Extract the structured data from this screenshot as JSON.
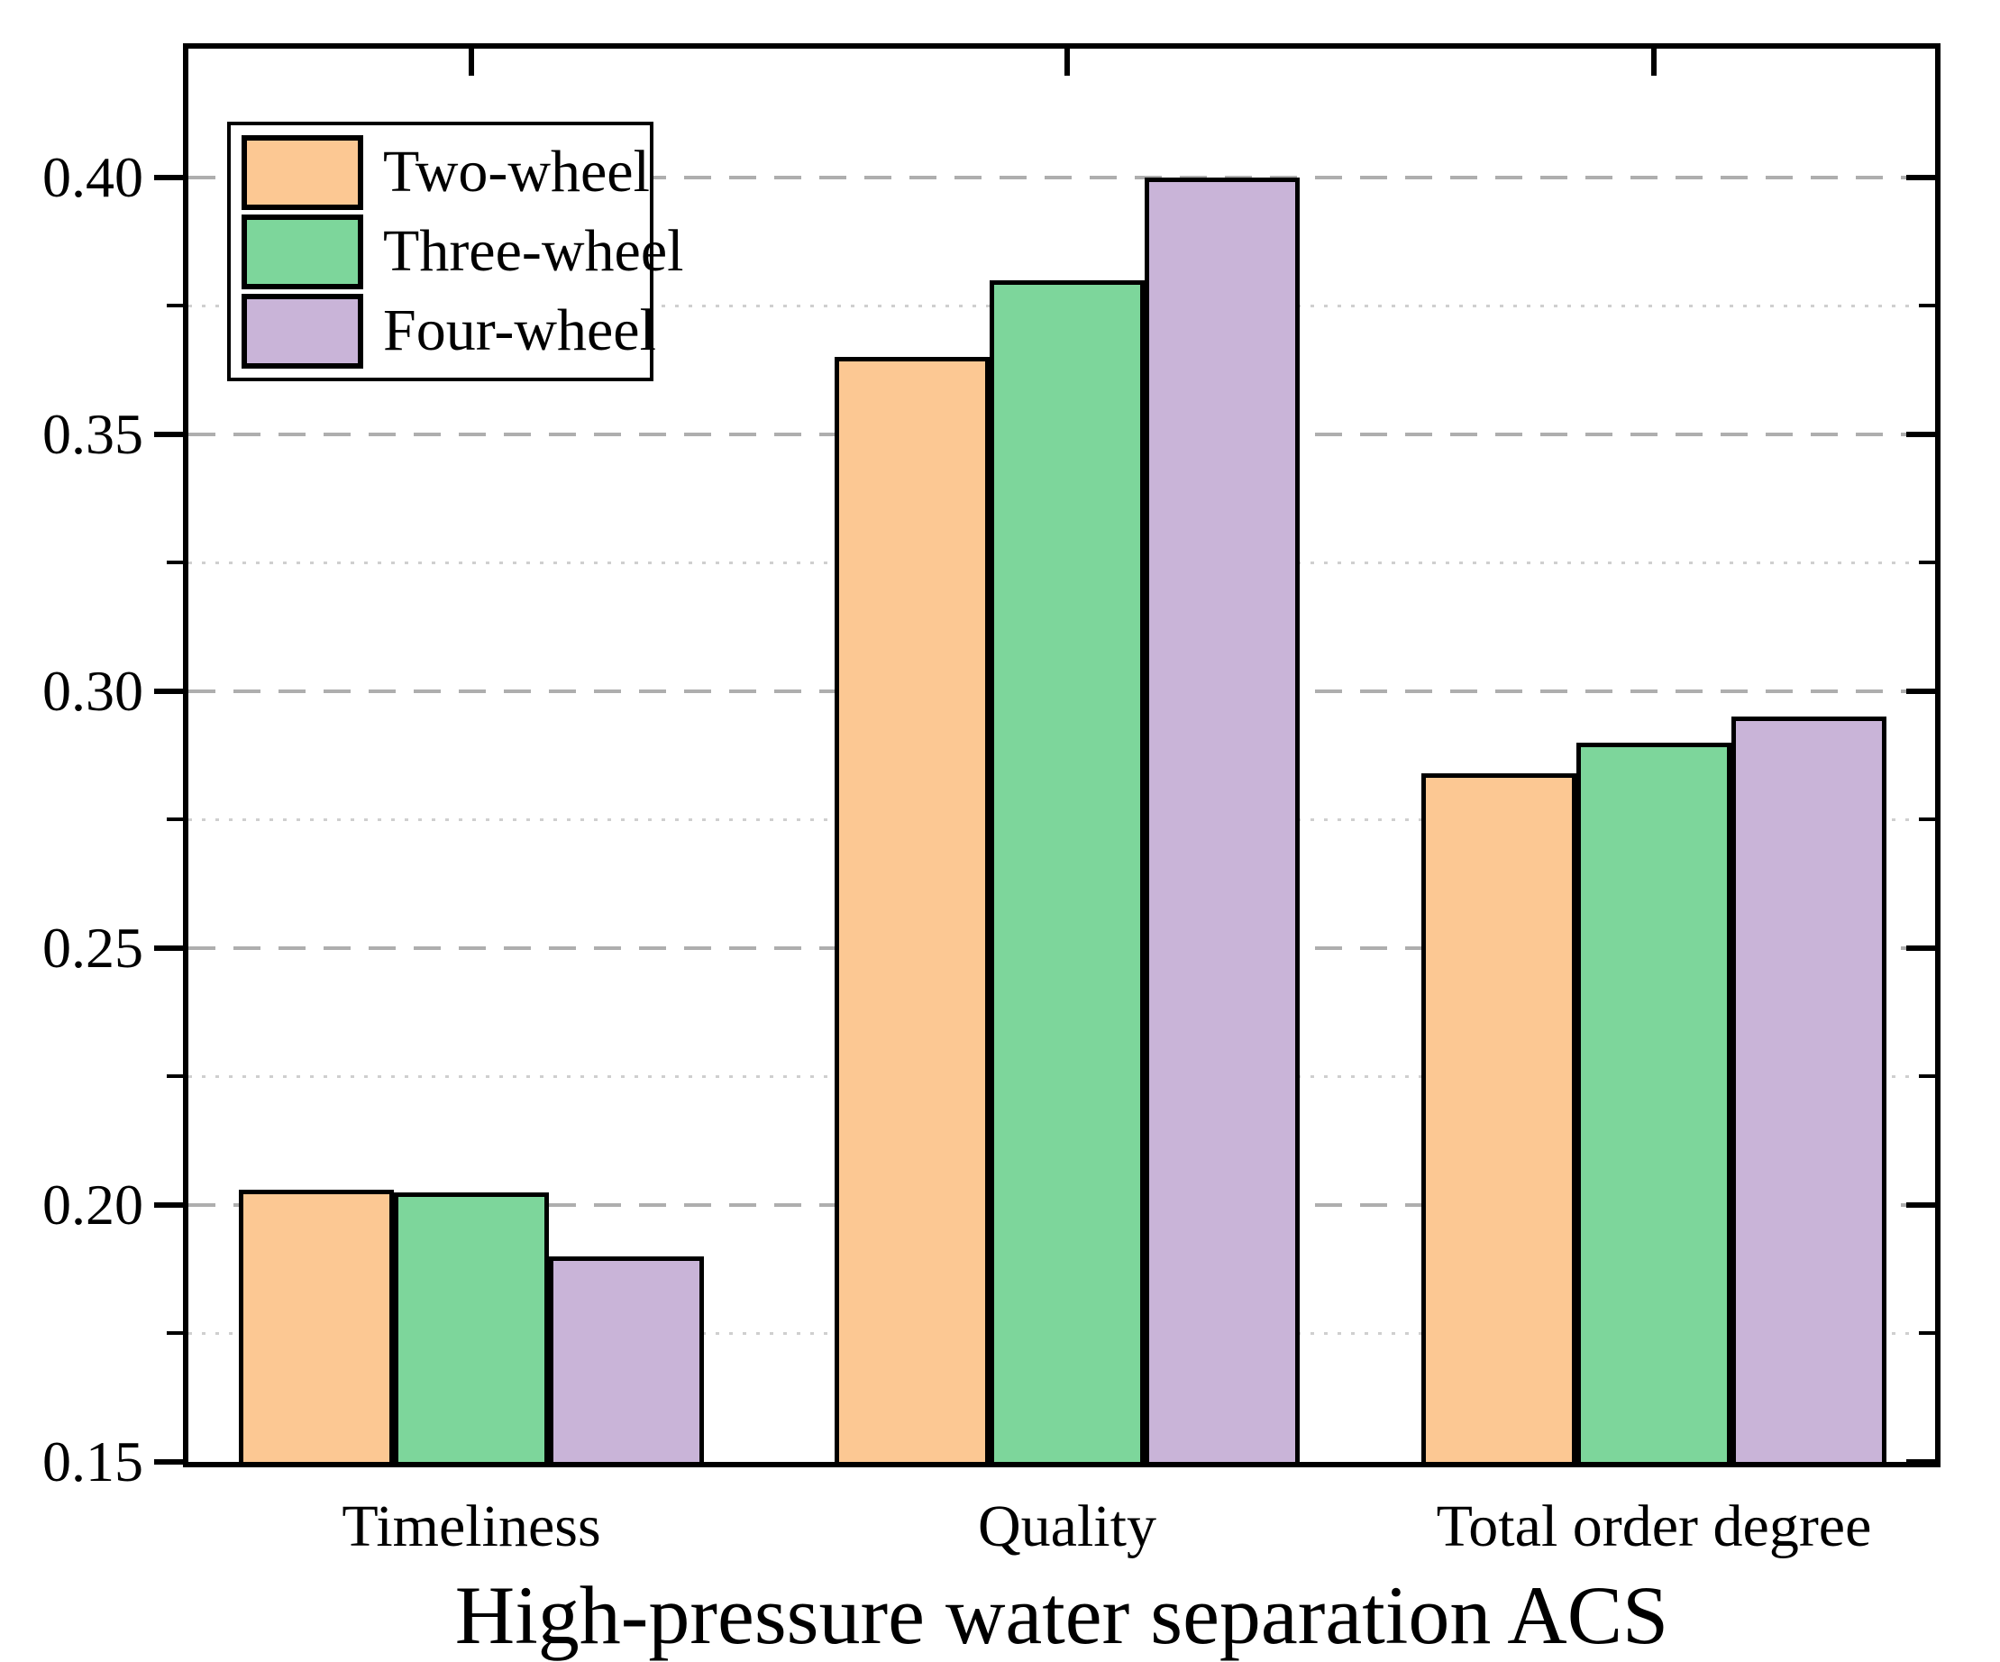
{
  "chart_data": {
    "type": "bar",
    "title": "",
    "xlabel": "High-pressure water separation ACS",
    "ylabel": "",
    "categories": [
      "Timeliness",
      "Quality",
      "Total order degree"
    ],
    "series": [
      {
        "name": "Two-wheel",
        "color": "#fcc893",
        "values": [
          0.203,
          0.365,
          0.284
        ]
      },
      {
        "name": "Three-wheel",
        "color": "#7dd69b",
        "values": [
          0.2025,
          0.38,
          0.29
        ]
      },
      {
        "name": "Four-wheel",
        "color": "#c9b4d8",
        "values": [
          0.19,
          0.4,
          0.295
        ]
      }
    ],
    "y_ticks": [
      0.15,
      0.2,
      0.25,
      0.3,
      0.35,
      0.4
    ],
    "y_tick_labels": [
      "0.15",
      "0.20",
      "0.25",
      "0.30",
      "0.35",
      "0.40"
    ],
    "y_minor_ticks": [
      0.175,
      0.225,
      0.275,
      0.325,
      0.375
    ],
    "ylim": [
      0.15,
      0.425
    ],
    "grid": {
      "major": "dashed",
      "minor": "dotted"
    },
    "legend_position": "upper left"
  },
  "colors": {
    "grid_major": "#aeaeae",
    "grid_minor": "#cfcfcf",
    "axis": "#000000",
    "background": "#ffffff"
  }
}
